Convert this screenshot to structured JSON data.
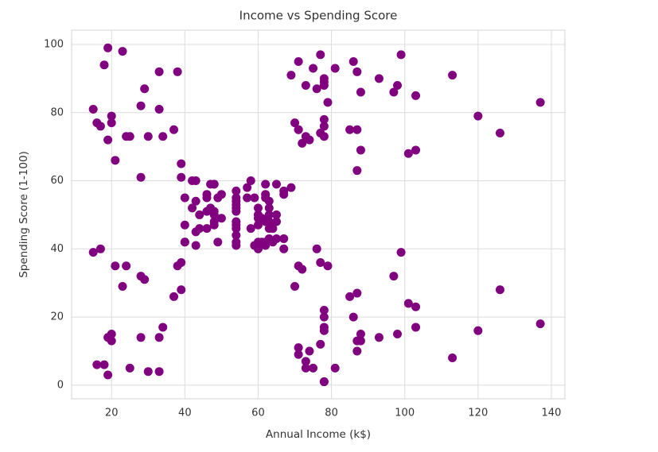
{
  "chart_data": {
    "type": "scatter",
    "title": "Income vs Spending Score",
    "xlabel": "Annual Income (k$)",
    "ylabel": "Spending Score (1-100)",
    "color": "#800080",
    "grid": true,
    "xlim": [
      9.1,
      143.7
    ],
    "ylim": [
      -4,
      104.2
    ],
    "xticks": [
      20,
      40,
      60,
      80,
      100,
      120,
      140
    ],
    "yticks": [
      0,
      20,
      40,
      60,
      80,
      100
    ],
    "x": [
      15,
      15,
      16,
      16,
      17,
      17,
      18,
      18,
      19,
      19,
      19,
      19,
      20,
      20,
      20,
      20,
      21,
      21,
      23,
      23,
      24,
      24,
      25,
      25,
      28,
      28,
      28,
      28,
      29,
      29,
      30,
      30,
      33,
      33,
      33,
      33,
      34,
      34,
      37,
      37,
      38,
      38,
      39,
      39,
      39,
      39,
      40,
      40,
      40,
      40,
      42,
      42,
      43,
      43,
      43,
      43,
      44,
      44,
      46,
      46,
      46,
      46,
      47,
      47,
      48,
      48,
      48,
      48,
      48,
      48,
      49,
      49,
      50,
      50,
      54,
      54,
      54,
      54,
      54,
      54,
      54,
      54,
      54,
      54,
      54,
      54,
      57,
      57,
      58,
      58,
      59,
      59,
      60,
      60,
      60,
      60,
      60,
      60,
      61,
      61,
      62,
      62,
      62,
      62,
      62,
      62,
      63,
      63,
      63,
      63,
      63,
      63,
      64,
      64,
      65,
      65,
      65,
      65,
      67,
      67,
      67,
      67,
      69,
      69,
      70,
      70,
      71,
      71,
      71,
      71,
      71,
      71,
      72,
      72,
      73,
      73,
      73,
      73,
      74,
      74,
      75,
      75,
      76,
      76,
      77,
      77,
      77,
      77,
      78,
      78,
      78,
      78,
      78,
      78,
      78,
      78,
      78,
      78,
      78,
      78,
      79,
      79,
      81,
      81,
      85,
      85,
      86,
      86,
      87,
      87,
      87,
      87,
      87,
      87,
      88,
      88,
      88,
      88,
      93,
      93,
      97,
      97,
      98,
      98,
      99,
      99,
      101,
      101,
      103,
      103,
      103,
      103,
      113,
      113,
      120,
      120,
      126,
      126,
      137,
      137
    ],
    "y": [
      39,
      81,
      6,
      77,
      40,
      76,
      6,
      94,
      3,
      72,
      14,
      99,
      15,
      77,
      13,
      79,
      35,
      66,
      29,
      98,
      35,
      73,
      5,
      73,
      14,
      82,
      32,
      61,
      31,
      87,
      4,
      73,
      4,
      92,
      14,
      81,
      17,
      73,
      26,
      75,
      35,
      92,
      36,
      61,
      28,
      65,
      55,
      47,
      42,
      42,
      52,
      60,
      54,
      60,
      45,
      41,
      50,
      46,
      51,
      46,
      56,
      55,
      52,
      59,
      51,
      59,
      50,
      48,
      59,
      47,
      55,
      42,
      49,
      56,
      47,
      54,
      53,
      48,
      52,
      42,
      51,
      55,
      41,
      44,
      57,
      46,
      58,
      55,
      60,
      46,
      55,
      41,
      49,
      40,
      42,
      52,
      47,
      50,
      42,
      49,
      41,
      48,
      59,
      55,
      56,
      42,
      50,
      46,
      43,
      48,
      52,
      54,
      42,
      46,
      48,
      50,
      43,
      59,
      43,
      57,
      56,
      40,
      58,
      91,
      29,
      77,
      35,
      95,
      11,
      75,
      9,
      75,
      34,
      71,
      5,
      88,
      7,
      73,
      10,
      72,
      5,
      93,
      40,
      87,
      12,
      97,
      36,
      74,
      22,
      90,
      17,
      88,
      20,
      76,
      16,
      89,
      1,
      78,
      1,
      73,
      35,
      83,
      5,
      93,
      26,
      75,
      20,
      95,
      27,
      63,
      13,
      75,
      10,
      92,
      13,
      86,
      15,
      69,
      14,
      90,
      32,
      86,
      15,
      88,
      39,
      97,
      24,
      68,
      17,
      85,
      23,
      69,
      8,
      91,
      16,
      79,
      28,
      74,
      18,
      83
    ]
  }
}
